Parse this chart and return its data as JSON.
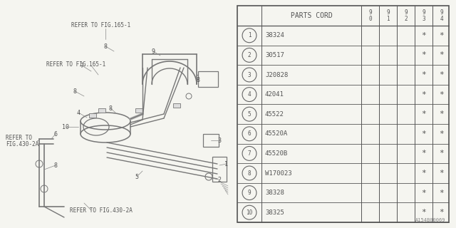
{
  "background_color": "#f5f5f0",
  "table_bg": "#f5f5f0",
  "parts": [
    "38324",
    "30517",
    "J20828",
    "42041",
    "45522",
    "45520A",
    "45520B",
    "W170023",
    "38328",
    "38325"
  ],
  "nums": [
    "1",
    "2",
    "3",
    "4",
    "5",
    "6",
    "7",
    "8",
    "9",
    "10"
  ],
  "year_cols": [
    "9\n0",
    "9\n1",
    "9\n2",
    "9\n3",
    "9\n4"
  ],
  "stars_93_94": true,
  "watermark": "A154B00069",
  "lc": "#777777",
  "tc": "#555555",
  "tlc": "#888888"
}
